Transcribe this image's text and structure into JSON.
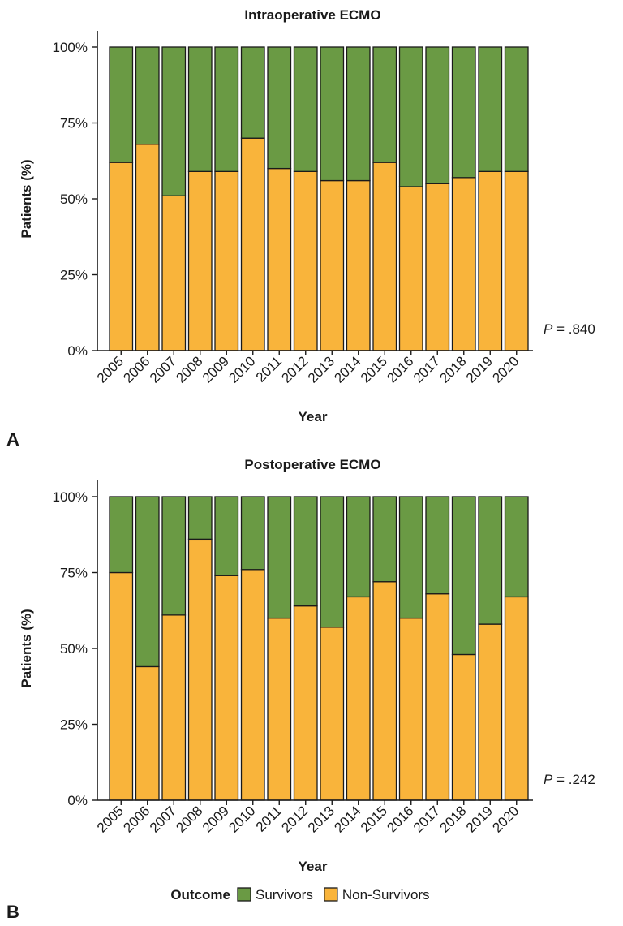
{
  "colors": {
    "survivors": "#6a9a44",
    "non_survivors": "#f9b43b"
  },
  "legend": {
    "title": "Outcome",
    "items": [
      {
        "key": "survivors",
        "label": "Survivors"
      },
      {
        "key": "non_survivors",
        "label": "Non-Survivors"
      }
    ]
  },
  "chart_data": [
    {
      "type": "bar",
      "stacked": true,
      "panel_label": "A",
      "title": "Intraoperative ECMO",
      "xlabel": "Year",
      "ylabel": "Patients (%)",
      "ylim": [
        0,
        100
      ],
      "yticks": [
        "0%",
        "25%",
        "50%",
        "75%",
        "100%"
      ],
      "categories": [
        "2005",
        "2006",
        "2007",
        "2008",
        "2009",
        "2010",
        "2011",
        "2012",
        "2013",
        "2014",
        "2015",
        "2016",
        "2017",
        "2018",
        "2019",
        "2020"
      ],
      "series": [
        {
          "name": "Non-Survivors",
          "key": "non_survivors",
          "values": [
            62,
            68,
            51,
            59,
            59,
            70,
            60,
            59,
            56,
            56,
            62,
            54,
            55,
            57,
            59,
            59
          ]
        },
        {
          "name": "Survivors",
          "key": "survivors",
          "values": [
            38,
            32,
            49,
            41,
            41,
            30,
            40,
            41,
            44,
            44,
            38,
            46,
            45,
            43,
            41,
            41
          ]
        }
      ],
      "p_value_label": "P",
      "p_value_text": " = .840"
    },
    {
      "type": "bar",
      "stacked": true,
      "panel_label": "B",
      "title": "Postoperative ECMO",
      "xlabel": "Year",
      "ylabel": "Patients (%)",
      "ylim": [
        0,
        100
      ],
      "yticks": [
        "0%",
        "25%",
        "50%",
        "75%",
        "100%"
      ],
      "categories": [
        "2005",
        "2006",
        "2007",
        "2008",
        "2009",
        "2010",
        "2011",
        "2012",
        "2013",
        "2014",
        "2015",
        "2016",
        "2017",
        "2018",
        "2019",
        "2020"
      ],
      "series": [
        {
          "name": "Non-Survivors",
          "key": "non_survivors",
          "values": [
            75,
            44,
            61,
            86,
            74,
            76,
            60,
            64,
            57,
            67,
            72,
            60,
            68,
            48,
            58,
            67
          ]
        },
        {
          "name": "Survivors",
          "key": "survivors",
          "values": [
            25,
            56,
            39,
            14,
            26,
            24,
            40,
            36,
            43,
            33,
            28,
            40,
            32,
            52,
            42,
            33
          ]
        }
      ],
      "p_value_label": "P",
      "p_value_text": " = .242"
    }
  ]
}
